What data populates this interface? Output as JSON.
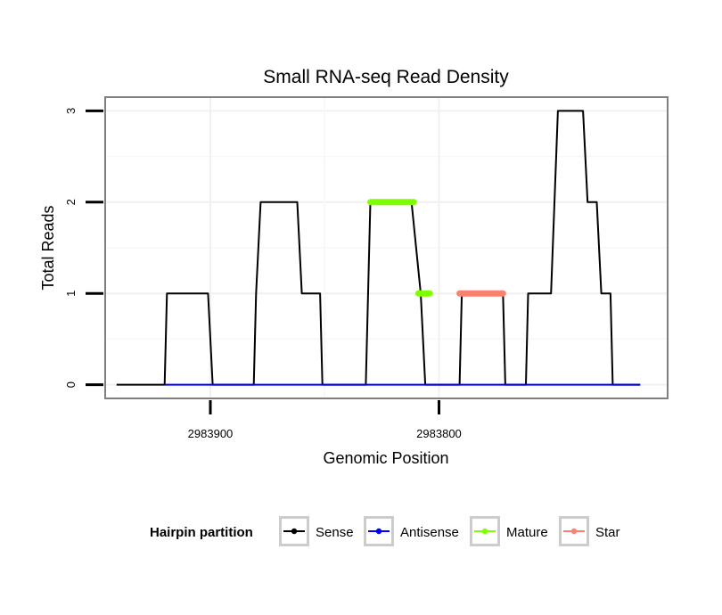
{
  "chart_data": {
    "type": "line",
    "title": "Small RNA-seq Read Density",
    "xlabel": "Genomic Position",
    "ylabel": "Total Reads",
    "x_reversed": true,
    "xlim": [
      2983946,
      2983700
    ],
    "ylim": [
      -0.15,
      3.15
    ],
    "xticks": [
      2983900,
      2983800
    ],
    "xtick_labels": [
      "2983900",
      "2983800"
    ],
    "yticks": [
      0,
      1,
      2,
      3
    ],
    "ytick_labels": [
      "0",
      "1",
      "2",
      "3"
    ],
    "grid": true,
    "legend_position": "bottom",
    "legend_title": "Hairpin partition",
    "series": [
      {
        "name": "Sense",
        "color": "#000000",
        "points": [
          [
            2983941,
            0
          ],
          [
            2983920,
            0
          ],
          [
            2983919,
            1
          ],
          [
            2983901,
            1
          ],
          [
            2983899,
            0
          ],
          [
            2983881,
            0
          ],
          [
            2983880,
            1
          ],
          [
            2983878,
            2
          ],
          [
            2983862,
            2
          ],
          [
            2983860,
            1
          ],
          [
            2983852,
            1
          ],
          [
            2983851,
            0
          ],
          [
            2983832,
            0
          ],
          [
            2983830,
            2
          ],
          [
            2983812,
            2
          ],
          [
            2983808,
            1
          ],
          [
            2983806,
            0
          ],
          [
            2983791,
            0
          ],
          [
            2983790,
            1
          ],
          [
            2983772,
            1
          ],
          [
            2983771,
            0
          ],
          [
            2983762,
            0
          ],
          [
            2983761,
            1
          ],
          [
            2983751,
            1
          ],
          [
            2983748,
            3
          ],
          [
            2983737,
            3
          ],
          [
            2983735,
            2
          ],
          [
            2983731,
            2
          ],
          [
            2983729,
            1
          ],
          [
            2983725,
            1
          ],
          [
            2983724,
            0
          ],
          [
            2983712,
            0
          ]
        ]
      },
      {
        "name": "Antisense",
        "color": "#0000ff",
        "points": [
          [
            2983920,
            0
          ],
          [
            2983712,
            0
          ]
        ]
      },
      {
        "name": "Mature",
        "color": "#7fff00",
        "segments": [
          [
            [
              2983830,
              2
            ],
            [
              2983811,
              2
            ]
          ],
          [
            [
              2983809,
              1
            ],
            [
              2983804,
              1
            ]
          ]
        ]
      },
      {
        "name": "Star",
        "color": "#fa8072",
        "segments": [
          [
            [
              2983791,
              1
            ],
            [
              2983772,
              1
            ]
          ]
        ]
      }
    ]
  },
  "legend": {
    "title": "Hairpin partition",
    "items": [
      {
        "label": "Sense",
        "color": "#000000"
      },
      {
        "label": "Antisense",
        "color": "#0000ff"
      },
      {
        "label": "Mature",
        "color": "#7fff00"
      },
      {
        "label": "Star",
        "color": "#fa8072"
      }
    ]
  }
}
